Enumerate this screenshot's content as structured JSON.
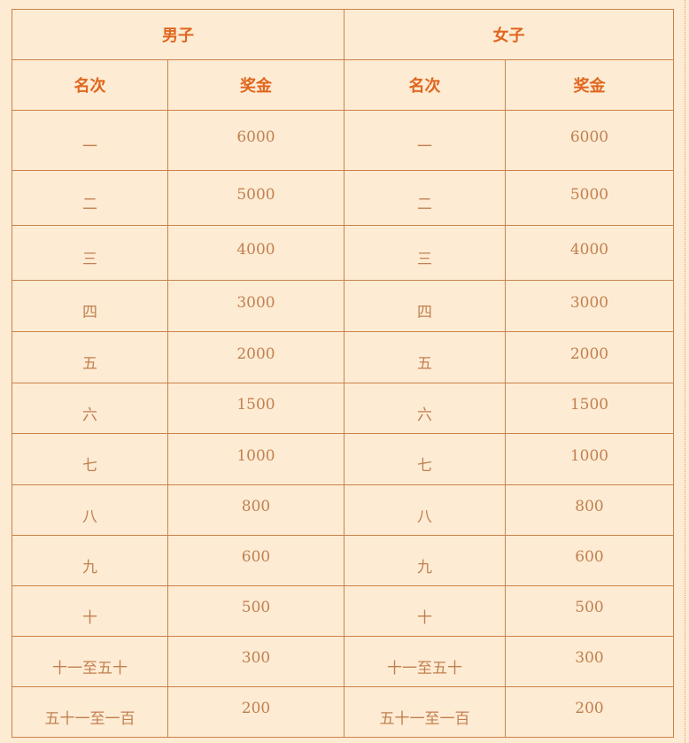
{
  "header": {
    "men": "男子",
    "women": "女子",
    "rank_label": "名次",
    "prize_label": "奖金"
  },
  "rows": [
    {
      "rank": "一",
      "prize": "6000"
    },
    {
      "rank": "二",
      "prize": "5000"
    },
    {
      "rank": "三",
      "prize": "4000"
    },
    {
      "rank": "四",
      "prize": "3000"
    },
    {
      "rank": "五",
      "prize": "2000"
    },
    {
      "rank": "六",
      "prize": "1500"
    },
    {
      "rank": "七",
      "prize": "1000"
    },
    {
      "rank": "八",
      "prize": "800"
    },
    {
      "rank": "九",
      "prize": "600"
    },
    {
      "rank": "十",
      "prize": "500"
    },
    {
      "rank": "十一至五十",
      "prize": "300"
    },
    {
      "rank": "五十一至一百",
      "prize": "200"
    }
  ]
}
